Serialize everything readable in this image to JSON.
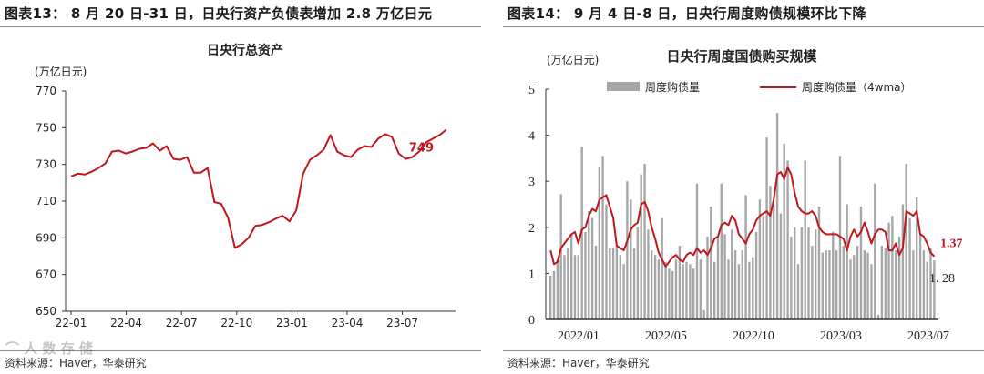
{
  "colors": {
    "line": "#c0161e",
    "bar": "#a6a6a6",
    "axis": "#333333",
    "text": "#222222"
  },
  "watermark": "⌒ 人 数 存 储",
  "left": {
    "figure_title": "图表13：  8 月 20 日-31 日，日央行资产负债表增加 2.8 万亿日元",
    "source": "资料来源：Haver，华泰研究",
    "chart_data": {
      "type": "line",
      "title": "日央行总资产",
      "unit": "(万亿日元)",
      "ylim": [
        650,
        770
      ],
      "yticks": [
        "770",
        "750",
        "730",
        "710",
        "690",
        "670",
        "650"
      ],
      "xticks": [
        "22-01",
        "22-04",
        "22-07",
        "22-10",
        "23-01",
        "23-04",
        "23-07"
      ],
      "end_label": "749",
      "series": [
        {
          "values": [
            723.5,
            725,
            724.5,
            726,
            728,
            730.5,
            737,
            737.5,
            736,
            737,
            738.5,
            739,
            741.5,
            737.5,
            740,
            733,
            732.5,
            734,
            725.5,
            725.5,
            728,
            709.5,
            708.5,
            701,
            684.5,
            686.5,
            690,
            696.5,
            697,
            698.5,
            700.5,
            702,
            699,
            705,
            725,
            732.5,
            735,
            738,
            746,
            737,
            735,
            734,
            738,
            740,
            739.5,
            744,
            746.5,
            745,
            736,
            733,
            734,
            737,
            742,
            744,
            746,
            749
          ]
        }
      ]
    }
  },
  "right": {
    "figure_title": "图表14：  9 月 4 日-8 日，日央行周度购债规模环比下降",
    "source": "资料来源：Haver，华泰研究",
    "chart_data": {
      "type": "bar",
      "title": "日央行周度国债购买规模",
      "unit": "(万亿日元)",
      "ylim": [
        0,
        5
      ],
      "yticks": [
        "5",
        "4",
        "3",
        "2",
        "1",
        "0"
      ],
      "xticks": [
        "2022/01",
        "2022/05",
        "2022/10",
        "2023/03",
        "2023/07"
      ],
      "end_label_line": "1.37",
      "end_label_bar": "1. 28",
      "series": [
        {
          "name": "周度购债量",
          "type": "bar",
          "values": [
            0.95,
            1.05,
            1.3,
            2.72,
            1.4,
            1.55,
            1.85,
            1.4,
            1.4,
            3.75,
            1.9,
            2.35,
            2.2,
            1.6,
            3.3,
            3.55,
            2.5,
            1.55,
            1.55,
            1.6,
            1.4,
            1.2,
            3.0,
            2.6,
            1.55,
            2.0,
            3.15,
            3.38,
            1.95,
            1.5,
            1.4,
            1.3,
            2.2,
            1.25,
            1.1,
            1.05,
            1.3,
            1.6,
            1.2,
            1.25,
            1.2,
            1.1,
            2.95,
            1.3,
            0.2,
            1.8,
            2.45,
            1.25,
            1.8,
            2.95,
            1.85,
            1.3,
            1.95,
            1.5,
            1.2,
            1.5,
            2.7,
            1.25,
            1.35,
            1.9,
            2.6,
            2.25,
            3.95,
            2.9,
            2.5,
            4.48,
            2.3,
            3.82,
            3.45,
            1.8,
            2.0,
            1.2,
            2.0,
            3.45,
            2.0,
            1.6,
            1.95,
            2.45,
            1.45,
            1.5,
            1.5,
            1.9,
            1.5,
            3.55,
            1.6,
            2.5,
            1.3,
            1.4,
            1.6,
            2.45,
            1.5,
            1.45,
            1.2,
            2.95,
            0.1,
            1.6,
            1.55,
            2.1,
            2.25,
            1.5,
            1.8,
            2.5,
            3.38,
            2.2,
            1.5,
            2.65,
            1.85,
            1.5,
            1.25,
            1.55,
            1.28
          ]
        },
        {
          "name": "周度购债量（4wma）",
          "type": "line",
          "values": [
            1.5,
            1.2,
            1.25,
            1.55,
            1.65,
            1.75,
            1.85,
            1.9,
            1.65,
            1.95,
            2.0,
            2.25,
            2.4,
            2.35,
            2.6,
            2.65,
            2.7,
            2.45,
            2.2,
            1.6,
            1.55,
            1.5,
            1.7,
            1.95,
            2.05,
            2.1,
            2.5,
            2.55,
            2.35,
            2.0,
            1.75,
            1.45,
            1.3,
            1.15,
            1.25,
            1.35,
            1.4,
            1.3,
            1.25,
            1.4,
            1.45,
            1.4,
            1.55,
            1.45,
            1.5,
            1.4,
            1.55,
            1.75,
            1.8,
            2.05,
            2.1,
            2.05,
            2.25,
            2.15,
            1.85,
            1.75,
            1.65,
            1.85,
            1.95,
            2.15,
            2.25,
            2.3,
            2.35,
            2.25,
            2.6,
            3.15,
            3.2,
            3.05,
            3.3,
            3.15,
            2.75,
            2.45,
            2.35,
            2.3,
            2.3,
            2.35,
            2.25,
            2.0,
            1.9,
            1.85,
            1.85,
            1.85,
            1.85,
            1.8,
            1.75,
            1.5,
            1.8,
            1.95,
            1.8,
            1.9,
            2.1,
            1.9,
            1.65,
            1.85,
            1.95,
            1.95,
            1.9,
            1.5,
            1.5,
            1.65,
            1.4,
            1.55,
            2.35,
            2.3,
            2.25,
            2.35,
            1.85,
            1.8,
            1.65,
            1.45,
            1.37
          ]
        }
      ]
    }
  }
}
